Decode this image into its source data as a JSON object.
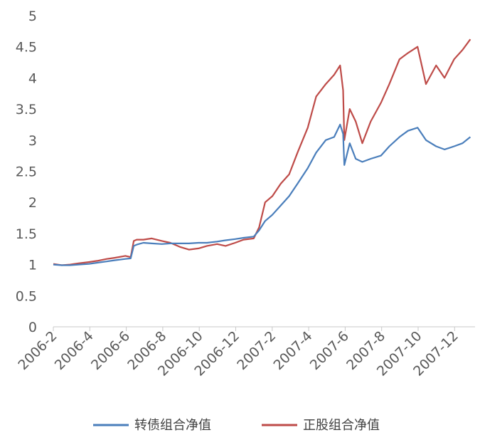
{
  "chart_data": {
    "type": "line",
    "title": "",
    "xlabel": "",
    "ylabel": "",
    "ylim": [
      0,
      5
    ],
    "y_ticks": [
      "0",
      "0.5",
      "1",
      "1.5",
      "2",
      "2.5",
      "3",
      "3.5",
      "4",
      "4.5",
      "5"
    ],
    "x_ticks": [
      "2006-2",
      "2006-4",
      "2006-6",
      "2006-8",
      "2006-10",
      "2006-12",
      "2007-2",
      "2007-4",
      "2007-6",
      "2007-8",
      "2007-10",
      "2007-12"
    ],
    "grid": false,
    "legend_position": "bottom",
    "x": [
      "2006-02-01",
      "2006-02-15",
      "2006-03-01",
      "2006-03-15",
      "2006-04-01",
      "2006-04-15",
      "2006-05-01",
      "2006-05-15",
      "2006-06-01",
      "2006-06-10",
      "2006-06-15",
      "2006-06-20",
      "2006-07-01",
      "2006-07-15",
      "2006-08-01",
      "2006-08-15",
      "2006-09-01",
      "2006-09-15",
      "2006-10-01",
      "2006-10-15",
      "2006-11-01",
      "2006-11-15",
      "2006-12-01",
      "2006-12-15",
      "2007-01-01",
      "2007-01-10",
      "2007-01-20",
      "2007-02-01",
      "2007-02-15",
      "2007-03-01",
      "2007-03-15",
      "2007-04-01",
      "2007-04-15",
      "2007-05-01",
      "2007-05-15",
      "2007-05-25",
      "2007-05-30",
      "2007-06-01",
      "2007-06-10",
      "2007-06-20",
      "2007-07-01",
      "2007-07-15",
      "2007-08-01",
      "2007-08-15",
      "2007-09-01",
      "2007-09-15",
      "2007-10-01",
      "2007-10-15",
      "2007-11-01",
      "2007-11-15",
      "2007-12-01",
      "2007-12-15",
      "2007-12-28"
    ],
    "series": [
      {
        "name": "转债组合净值",
        "color": "#4a7ebb",
        "values": [
          1.0,
          0.99,
          0.99,
          1.0,
          1.01,
          1.03,
          1.05,
          1.07,
          1.09,
          1.1,
          1.3,
          1.32,
          1.35,
          1.34,
          1.33,
          1.34,
          1.34,
          1.34,
          1.35,
          1.35,
          1.37,
          1.39,
          1.41,
          1.43,
          1.45,
          1.55,
          1.7,
          1.8,
          1.95,
          2.1,
          2.3,
          2.55,
          2.8,
          3.0,
          3.05,
          3.25,
          3.1,
          2.6,
          2.95,
          2.7,
          2.65,
          2.7,
          2.75,
          2.9,
          3.05,
          3.15,
          3.2,
          3.0,
          2.9,
          2.85,
          2.9,
          2.95,
          3.05
        ]
      },
      {
        "name": "正股组合净值",
        "color": "#be4b48",
        "values": [
          1.01,
          0.99,
          1.0,
          1.02,
          1.04,
          1.06,
          1.09,
          1.11,
          1.14,
          1.12,
          1.38,
          1.4,
          1.4,
          1.42,
          1.38,
          1.35,
          1.28,
          1.24,
          1.26,
          1.3,
          1.33,
          1.3,
          1.35,
          1.4,
          1.42,
          1.6,
          2.0,
          2.1,
          2.3,
          2.45,
          2.8,
          3.2,
          3.7,
          3.9,
          4.05,
          4.2,
          3.8,
          3.0,
          3.5,
          3.3,
          2.95,
          3.3,
          3.6,
          3.9,
          4.3,
          4.4,
          4.5,
          3.9,
          4.2,
          4.0,
          4.3,
          4.45,
          4.62
        ]
      }
    ]
  }
}
